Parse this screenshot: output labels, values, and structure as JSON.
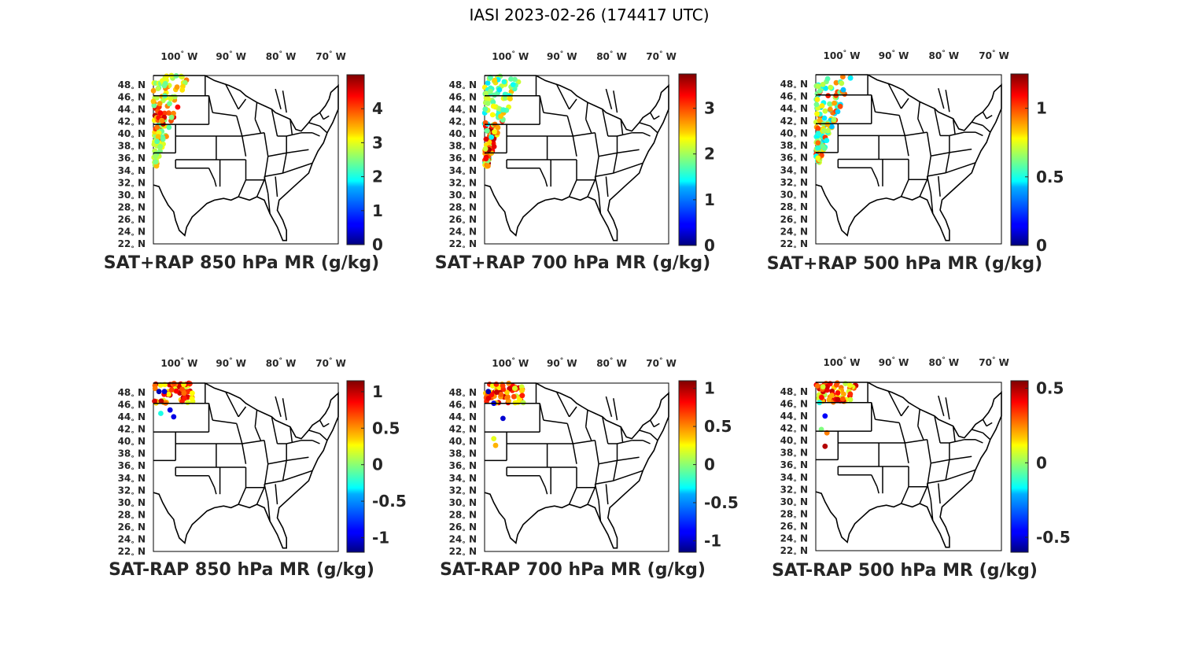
{
  "figure_title": "IASI 2023-02-26 (174417 UTC)",
  "map": {
    "lon_labels": [
      "100",
      "90",
      "80",
      "70"
    ],
    "lon_suffix": "W",
    "lat_labels": [
      "48",
      "46",
      "44",
      "42",
      "40",
      "38",
      "36",
      "34",
      "32",
      "30",
      "28",
      "26",
      "24",
      "22"
    ],
    "lat_suffix": "N",
    "degree_symbol": "°"
  },
  "colormap": "jet",
  "panels": [
    {
      "title": "SAT+RAP 850 hPa MR (g/kg)",
      "colorbar": {
        "min": 0,
        "max": 5,
        "ticks": [
          "0",
          "1",
          "2",
          "3",
          "4"
        ],
        "tick_values": [
          0,
          1,
          2,
          3,
          4
        ]
      }
    },
    {
      "title": "SAT+RAP 700 hPa MR (g/kg)",
      "colorbar": {
        "min": 0,
        "max": 3.75,
        "ticks": [
          "0",
          "1",
          "2",
          "3"
        ],
        "tick_values": [
          0,
          1,
          2,
          3
        ]
      }
    },
    {
      "title": "SAT+RAP 500 hPa MR (g/kg)",
      "colorbar": {
        "min": 0,
        "max": 1.25,
        "ticks": [
          "0",
          "0.5",
          "1"
        ],
        "tick_values": [
          0,
          0.5,
          1
        ]
      }
    },
    {
      "title": "SAT-RAP 850 hPa MR (g/kg)",
      "colorbar": {
        "min": -1.2,
        "max": 1.15,
        "ticks": [
          "-1",
          "-0.5",
          "0",
          "0.5",
          "1"
        ],
        "tick_values": [
          -1,
          -0.5,
          0,
          0.5,
          1
        ]
      }
    },
    {
      "title": "SAT-RAP 700 hPa MR (g/kg)",
      "colorbar": {
        "min": -1.15,
        "max": 1.1,
        "ticks": [
          "-1",
          "-0.5",
          "0",
          "0.5",
          "1"
        ],
        "tick_values": [
          -1,
          -0.5,
          0,
          0.5,
          1
        ]
      }
    },
    {
      "title": "SAT-RAP 500 hPa MR (g/kg)",
      "colorbar": {
        "min": -0.6,
        "max": 0.55,
        "ticks": [
          "-0.5",
          "0",
          "0.5"
        ],
        "tick_values": [
          -0.5,
          0,
          0.5
        ]
      }
    }
  ]
}
